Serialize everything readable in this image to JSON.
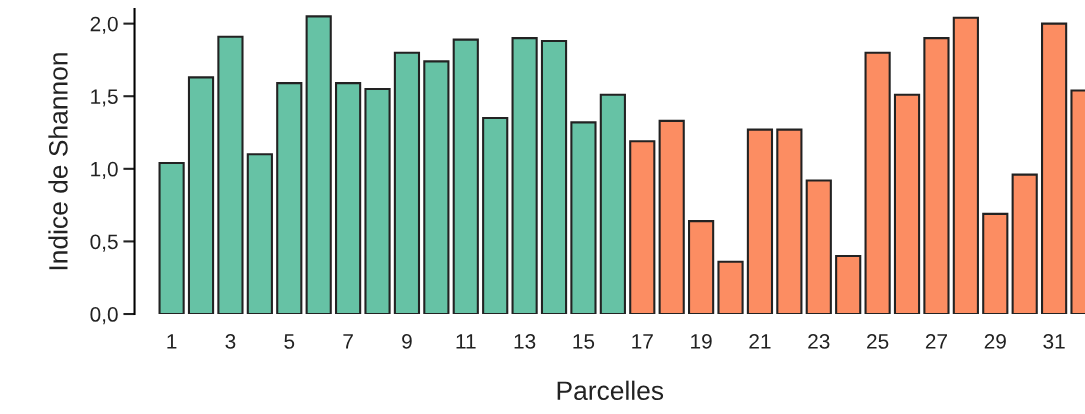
{
  "chart_data": {
    "type": "bar",
    "xlabel": "Parcelles",
    "ylabel": "Indice de Shannon",
    "categories": [
      "1",
      null,
      "3",
      null,
      "5",
      null,
      "7",
      null,
      "9",
      null,
      "11",
      null,
      "13",
      null,
      "15",
      null,
      "17",
      null,
      "19",
      null,
      "21",
      null,
      "23",
      null,
      "25",
      null,
      "27",
      null,
      "29",
      null,
      "31",
      null
    ],
    "values": [
      1.04,
      1.63,
      1.91,
      1.1,
      1.59,
      2.05,
      1.59,
      1.55,
      1.8,
      1.74,
      1.89,
      1.35,
      1.9,
      1.88,
      1.32,
      1.51,
      1.19,
      1.33,
      0.64,
      0.36,
      1.27,
      1.27,
      0.92,
      0.4,
      1.8,
      1.51,
      1.9,
      2.04,
      0.69,
      0.96,
      2.0,
      1.54
    ],
    "colors": [
      "#66c2a5",
      "#66c2a5",
      "#66c2a5",
      "#66c2a5",
      "#66c2a5",
      "#66c2a5",
      "#66c2a5",
      "#66c2a5",
      "#66c2a5",
      "#66c2a5",
      "#66c2a5",
      "#66c2a5",
      "#66c2a5",
      "#66c2a5",
      "#66c2a5",
      "#66c2a5",
      "#fc8d62",
      "#fc8d62",
      "#fc8d62",
      "#fc8d62",
      "#fc8d62",
      "#fc8d62",
      "#fc8d62",
      "#fc8d62",
      "#fc8d62",
      "#fc8d62",
      "#fc8d62",
      "#fc8d62",
      "#fc8d62",
      "#fc8d62",
      "#fc8d62",
      "#fc8d62"
    ],
    "ylim": [
      0,
      2.1
    ],
    "yticks": [
      {
        "value": 0,
        "label": "0,0"
      },
      {
        "value": 0.5,
        "label": "0,5"
      },
      {
        "value": 1.0,
        "label": "1,0"
      },
      {
        "value": 1.5,
        "label": "1,5"
      },
      {
        "value": 2.0,
        "label": "2,0"
      }
    ],
    "grid": false,
    "legend": false
  }
}
